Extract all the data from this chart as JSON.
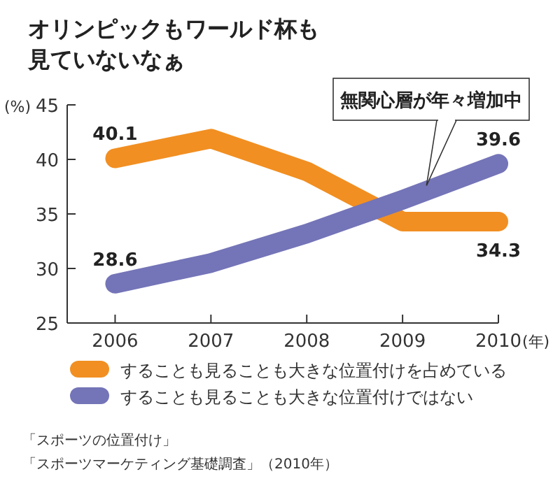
{
  "chart_data": {
    "type": "line",
    "title": "オリンピックもワールド杯も見ていないなぁ",
    "ylabel": "(%)",
    "xlabel": "(年)",
    "x": [
      2006,
      2007,
      2008,
      2009,
      2010
    ],
    "xlim": [
      2005.5,
      2010
    ],
    "xticks": [
      2006,
      2007,
      2008,
      2009,
      2010
    ],
    "ylim": [
      25,
      45
    ],
    "yticks": [
      25,
      30,
      35,
      40,
      45
    ],
    "series": [
      {
        "name": "することも見ることも大きな位置付けを占めている",
        "color": "#f18f22",
        "values": [
          40.1,
          41.9,
          38.9,
          34.3,
          34.3
        ],
        "value_labels": [
          "40.1",
          null,
          null,
          null,
          "34.3"
        ]
      },
      {
        "name": "することも見ることも大きな位置付けではない",
        "color": "#7474b8",
        "values": [
          28.6,
          30.5,
          33.2,
          36.3,
          39.6
        ],
        "value_labels": [
          "28.6",
          null,
          null,
          null,
          "39.6"
        ]
      }
    ],
    "annotations": [
      {
        "text": "無関心層が年々増加中",
        "x": 2009.25,
        "y": 37.6
      },
      "「スポーツの位置付け」",
      "「スポーツマーケティング基礎調査」（2010年）"
    ],
    "legend": "bottom",
    "grid": false,
    "line_style": "solid"
  }
}
